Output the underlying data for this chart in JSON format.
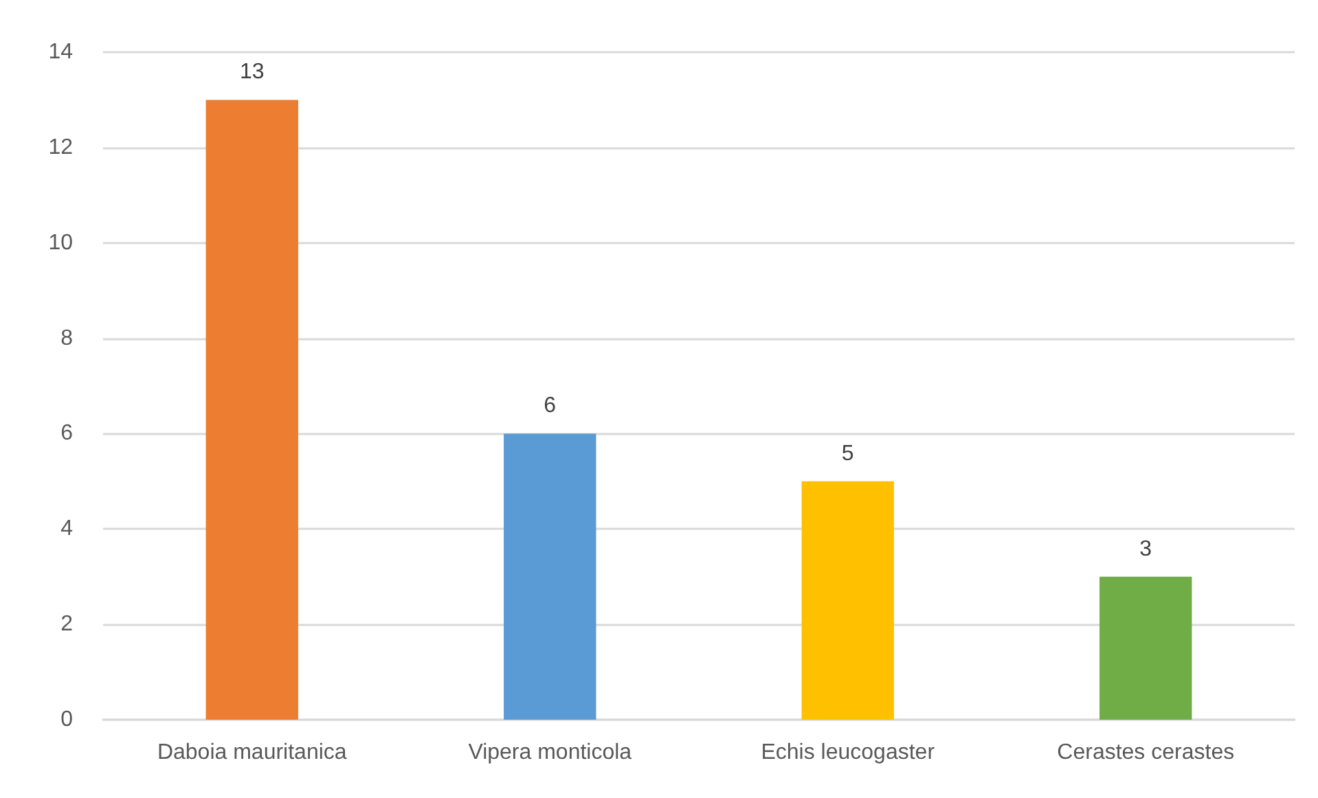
{
  "chart_data": {
    "type": "bar",
    "categories": [
      "Daboia mauritanica",
      "Vipera monticola",
      "Echis leucogaster",
      "Cerastes cerastes"
    ],
    "values": [
      13,
      6,
      5,
      3
    ],
    "colors": [
      "#ed7d31",
      "#5b9bd5",
      "#ffc000",
      "#70ad47"
    ],
    "ylim": [
      0,
      14
    ],
    "yticks": [
      0,
      2,
      4,
      6,
      8,
      10,
      12,
      14
    ],
    "grid": "y",
    "data_labels": true
  }
}
